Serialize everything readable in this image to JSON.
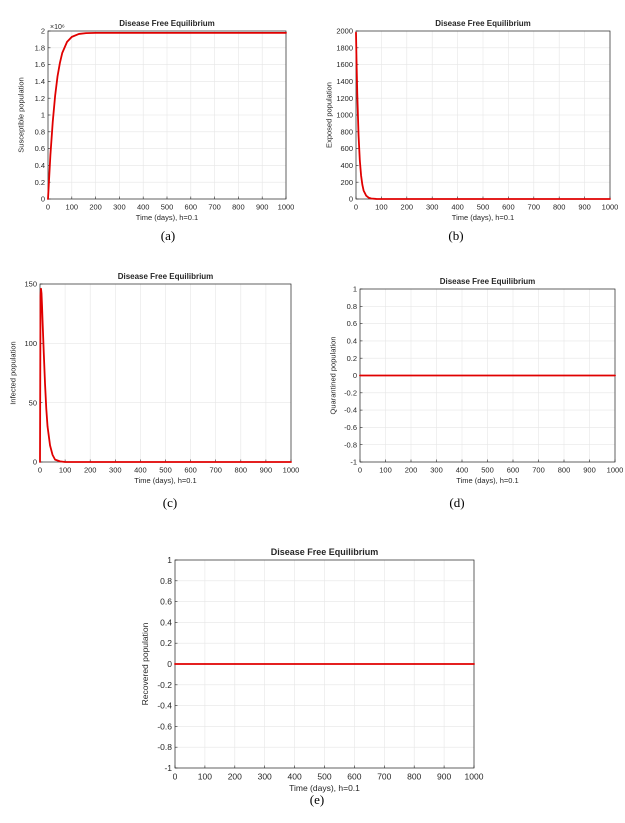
{
  "chart_data": [
    {
      "type": "line",
      "title": "Disease Free Equilibrium",
      "xlabel": "Time (days), h=0.1",
      "ylabel": "Susceptible population",
      "xlim": [
        0,
        1000
      ],
      "ylim": [
        0,
        2
      ],
      "y_exponent_label": "×10⁶",
      "xticks": [
        0,
        100,
        200,
        300,
        400,
        500,
        600,
        700,
        800,
        900,
        1000
      ],
      "yticks": [
        0,
        0.2,
        0.4,
        0.6,
        0.8,
        1,
        1.2,
        1.4,
        1.6,
        1.8,
        2
      ],
      "grid": true,
      "series": [
        {
          "color": "#e00000",
          "x": [
            0,
            10,
            20,
            30,
            40,
            50,
            60,
            80,
            100,
            130,
            160,
            200,
            300,
            500,
            1000
          ],
          "y": [
            0,
            0.52,
            0.92,
            1.23,
            1.46,
            1.62,
            1.74,
            1.87,
            1.93,
            1.965,
            1.975,
            1.978,
            1.978,
            1.978,
            1.978
          ]
        }
      ],
      "caption": "(a)"
    },
    {
      "type": "line",
      "title": "Disease Free Equilibrium",
      "xlabel": "Time (days), h=0.1",
      "ylabel": "Exposed population",
      "xlim": [
        0,
        1000
      ],
      "ylim": [
        0,
        2000
      ],
      "xticks": [
        0,
        100,
        200,
        300,
        400,
        500,
        600,
        700,
        800,
        900,
        1000
      ],
      "yticks": [
        0,
        200,
        400,
        600,
        800,
        1000,
        1200,
        1400,
        1600,
        1800,
        2000
      ],
      "grid": true,
      "series": [
        {
          "color": "#e00000",
          "x": [
            0,
            2,
            5,
            10,
            15,
            20,
            25,
            30,
            40,
            50,
            60,
            80,
            100,
            1000
          ],
          "y": [
            1980,
            1650,
            1250,
            760,
            460,
            280,
            170,
            100,
            40,
            15,
            6,
            1,
            0,
            0
          ]
        }
      ],
      "caption": "(b)"
    },
    {
      "type": "line",
      "title": "Disease Free Equilibrium",
      "xlabel": "Time (days), h=0.1",
      "ylabel": "Infected population",
      "xlim": [
        0,
        1000
      ],
      "ylim": [
        0,
        150
      ],
      "xticks": [
        0,
        100,
        200,
        300,
        400,
        500,
        600,
        700,
        800,
        900,
        1000
      ],
      "yticks": [
        0,
        50,
        100,
        150
      ],
      "grid": true,
      "series": [
        {
          "color": "#e00000",
          "x": [
            0,
            2,
            4,
            6,
            8,
            10,
            15,
            20,
            25,
            30,
            40,
            50,
            60,
            80,
            100,
            1000
          ],
          "y": [
            0,
            140,
            146,
            142,
            132,
            120,
            92,
            66,
            45,
            30,
            14,
            6,
            2,
            0.5,
            0,
            0
          ]
        }
      ],
      "caption": "(c)"
    },
    {
      "type": "line",
      "title": "Disease Free Equilibrium",
      "xlabel": "Time (days), h=0.1",
      "ylabel": "Quarantined population",
      "xlim": [
        0,
        1000
      ],
      "ylim": [
        -1,
        1
      ],
      "xticks": [
        0,
        100,
        200,
        300,
        400,
        500,
        600,
        700,
        800,
        900,
        1000
      ],
      "yticks": [
        -1,
        -0.8,
        -0.6,
        -0.4,
        -0.2,
        0,
        0.2,
        0.4,
        0.6,
        0.8,
        1
      ],
      "grid": true,
      "series": [
        {
          "color": "#e00000",
          "x": [
            0,
            1000
          ],
          "y": [
            0,
            0
          ]
        }
      ],
      "caption": "(d)"
    },
    {
      "type": "line",
      "title": "Disease Free Equilibrium",
      "xlabel": "Time (days), h=0.1",
      "ylabel": "Recovered population",
      "xlim": [
        0,
        1000
      ],
      "ylim": [
        -1,
        1
      ],
      "xticks": [
        0,
        100,
        200,
        300,
        400,
        500,
        600,
        700,
        800,
        900,
        1000
      ],
      "yticks": [
        -1,
        -0.8,
        -0.6,
        -0.4,
        -0.2,
        0,
        0.2,
        0.4,
        0.6,
        0.8,
        1
      ],
      "grid": true,
      "series": [
        {
          "color": "#e00000",
          "x": [
            0,
            1000
          ],
          "y": [
            0,
            0
          ]
        }
      ],
      "caption": "(e)"
    }
  ]
}
